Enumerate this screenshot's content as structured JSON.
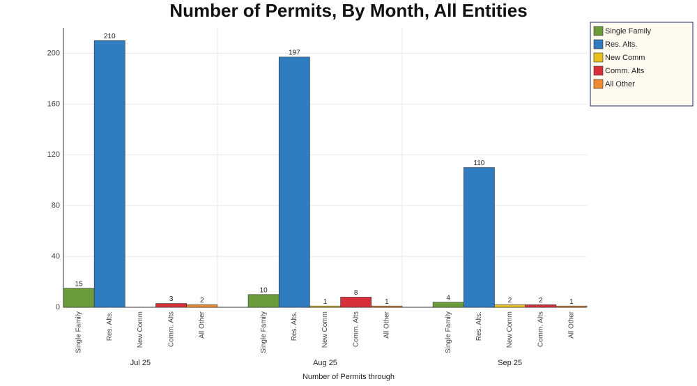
{
  "chart_data": {
    "type": "bar",
    "title": "Number of Permits, By Month, All Entities",
    "x_label": "Number of Permits  through",
    "categories": [
      "Jul 25",
      "Aug 25",
      "Sep 25"
    ],
    "series": [
      {
        "name": "Single Family",
        "color": "#6b9b3a",
        "values": [
          15,
          10,
          4
        ]
      },
      {
        "name": "Res. Alts.",
        "color": "#2f7cc0",
        "values": [
          210,
          197,
          110
        ]
      },
      {
        "name": "New Comm",
        "color": "#e8c020",
        "values": [
          null,
          1,
          2
        ]
      },
      {
        "name": "Comm. Alts",
        "color": "#d8303a",
        "values": [
          3,
          8,
          2
        ]
      },
      {
        "name": "All Other",
        "color": "#f08a30",
        "values": [
          2,
          1,
          1
        ]
      }
    ],
    "ylim": [
      0,
      220
    ],
    "yticks": [
      0,
      40,
      80,
      120,
      160,
      200
    ],
    "grid": true,
    "legend": "top-right"
  }
}
